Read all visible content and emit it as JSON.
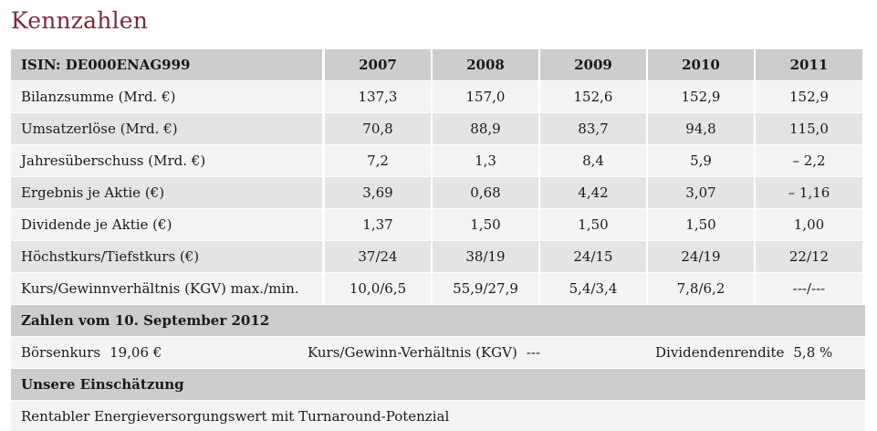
{
  "title": "Kennzahlen",
  "table": {
    "isin_label": "ISIN: DE000ENAG999",
    "years": [
      "2007",
      "2008",
      "2009",
      "2010",
      "2011"
    ],
    "rows": [
      {
        "label": "Bilanzsumme (Mrd. €)",
        "values": [
          "137,3",
          "157,0",
          "152,6",
          "152,9",
          "152,9"
        ]
      },
      {
        "label": "Umsatzerlöse (Mrd. €)",
        "values": [
          "70,8",
          "88,9",
          "83,7",
          "94,8",
          "115,0"
        ]
      },
      {
        "label": "Jahresüberschuss (Mrd. €)",
        "values": [
          "7,2",
          "1,3",
          "8,4",
          "5,9",
          "– 2,2"
        ]
      },
      {
        "label": "Ergebnis je Aktie (€)",
        "values": [
          "3,69",
          "0,68",
          "4,42",
          "3,07",
          "– 1,16"
        ]
      },
      {
        "label": "Dividende je Aktie (€)",
        "values": [
          "1,37",
          "1,50",
          "1,50",
          "1,50",
          "1,00"
        ]
      },
      {
        "label": "Höchstkurs/Tiefstkurs (€)",
        "values": [
          "37/24",
          "38/19",
          "24/15",
          "24/19",
          "22/12"
        ]
      },
      {
        "label": "Kurs/Gewinnverhältnis (KGV) max./min.",
        "values": [
          "10,0/6,5",
          "55,9/27,9",
          "5,4/3,4",
          "7,8/6,2",
          "---/---"
        ]
      }
    ]
  },
  "zahlen": {
    "heading": "Zahlen vom 10. September 2012",
    "boersenkurs_label": "Börsenkurs",
    "boersenkurs_value": "19,06 €",
    "kgv_label": "Kurs/Gewinn-Verhältnis (KGV)",
    "kgv_value": "---",
    "dividendenrendite_label": "Dividendenrendite",
    "dividendenrendite_value": "5,8 %"
  },
  "einschaetzung": {
    "heading": "Unsere Einschätzung",
    "text": "Rentabler Energieversorgungswert mit Turnaround-Potenzial"
  }
}
